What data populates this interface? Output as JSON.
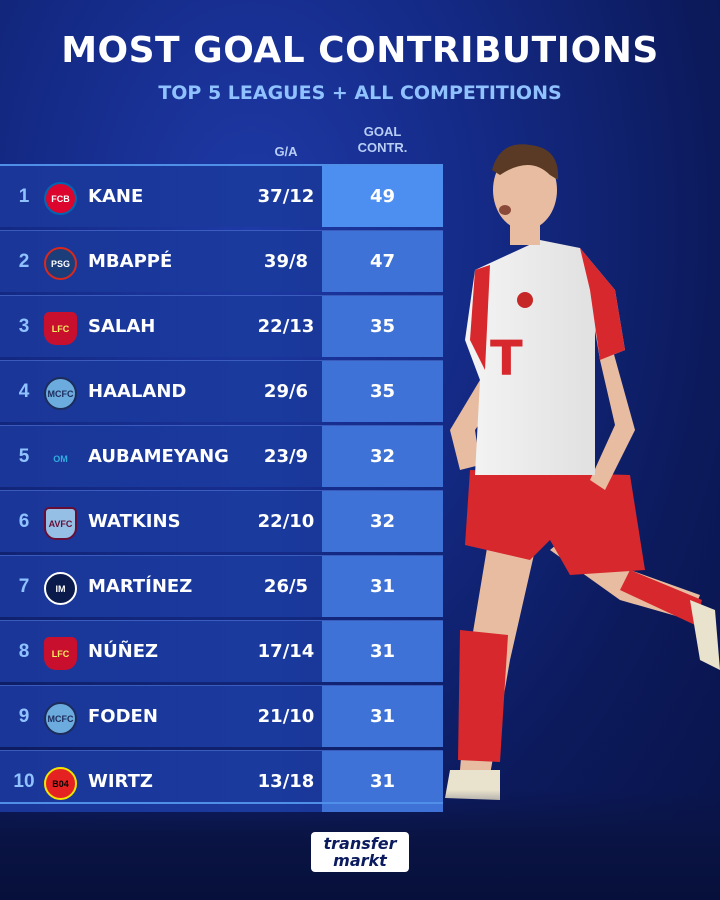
{
  "title": "MOST GOAL CONTRIBUTIONS",
  "subtitle": "TOP 5 LEAGUES + ALL COMPETITIONS",
  "columns": {
    "ga": "G/A",
    "gc_line1": "GOAL",
    "gc_line2": "CONTR."
  },
  "rows": [
    {
      "rank": "1",
      "name": "KANE",
      "ga": "37/12",
      "gc": "49",
      "crest_icon": "bayern-crest-icon"
    },
    {
      "rank": "2",
      "name": "MBAPPÉ",
      "ga": "39/8",
      "gc": "47",
      "crest_icon": "psg-crest-icon"
    },
    {
      "rank": "3",
      "name": "SALAH",
      "ga": "22/13",
      "gc": "35",
      "crest_icon": "liverpool-crest-icon"
    },
    {
      "rank": "4",
      "name": "HAALAND",
      "ga": "29/6",
      "gc": "35",
      "crest_icon": "man-city-crest-icon"
    },
    {
      "rank": "5",
      "name": "AUBAMEYANG",
      "ga": "23/9",
      "gc": "32",
      "crest_icon": "marseille-crest-icon"
    },
    {
      "rank": "6",
      "name": "WATKINS",
      "ga": "22/10",
      "gc": "32",
      "crest_icon": "aston-villa-crest-icon"
    },
    {
      "rank": "7",
      "name": "MARTÍNEZ",
      "ga": "26/5",
      "gc": "31",
      "crest_icon": "inter-crest-icon"
    },
    {
      "rank": "8",
      "name": "NÚÑEZ",
      "ga": "17/14",
      "gc": "31",
      "crest_icon": "liverpool-crest-icon"
    },
    {
      "rank": "9",
      "name": "FODEN",
      "ga": "21/10",
      "gc": "31",
      "crest_icon": "man-city-crest-icon"
    },
    {
      "rank": "10",
      "name": "WIRTZ",
      "ga": "13/18",
      "gc": "31",
      "crest_icon": "leverkusen-crest-icon"
    }
  ],
  "logo": {
    "line1": "transfer",
    "line2": "markt"
  },
  "colors": {
    "accent": "#8fc2ff",
    "highlight": "#4d8ff0",
    "gc_cell": "#3f72d6",
    "background": "#142a86"
  }
}
